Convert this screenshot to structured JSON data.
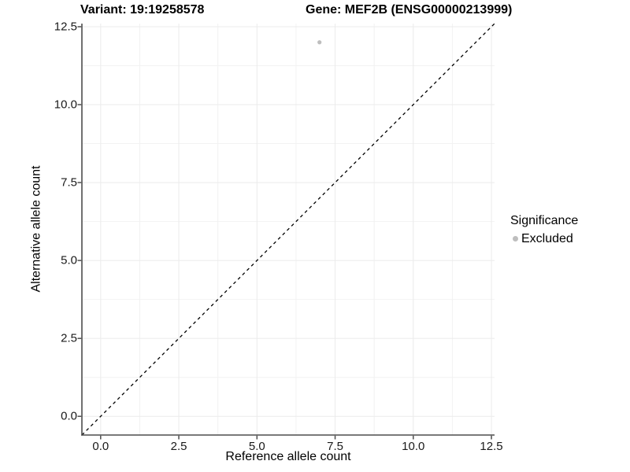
{
  "figure": {
    "title_variant": "Variant: 19:19258578",
    "title_gene": "Gene: MEF2B (ENSG00000213999)"
  },
  "legend": {
    "title": "Significance",
    "items": [
      {
        "label": "Excluded",
        "color": "#bebebe"
      }
    ]
  },
  "chart_data": {
    "type": "scatter",
    "title": "Variant: 19:19258578 | Gene: MEF2B (ENSG00000213999)",
    "xlabel": "Reference allele count",
    "ylabel": "Alternative allele count",
    "xlim": [
      -0.6,
      12.6
    ],
    "ylim": [
      -0.6,
      12.6
    ],
    "x_ticks": [
      0,
      2.5,
      5,
      7.5,
      10,
      12.5
    ],
    "y_ticks": [
      0,
      2.5,
      5,
      7.5,
      10,
      12.5
    ],
    "grid": {
      "shown": true,
      "major_color": "#ebebeb",
      "minor_color": "#f2f2f2"
    },
    "axis_line_color": "#4d4d4d",
    "legend_position": "right",
    "legend_title": "Significance",
    "series": [
      {
        "name": "Excluded",
        "color": "#bebebe",
        "marker": "circle",
        "points": [
          {
            "x": 7,
            "y": 12
          }
        ]
      }
    ],
    "reference_line": {
      "type": "identity y=x",
      "style": "dashed",
      "color": "#000000"
    }
  }
}
